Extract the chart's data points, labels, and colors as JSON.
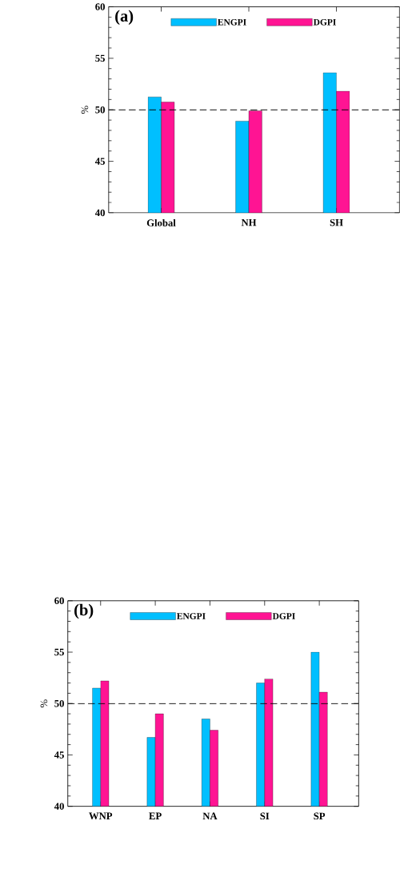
{
  "chart_data": [
    {
      "type": "bar",
      "title": "(a)",
      "ylabel": "%",
      "categories": [
        "Global",
        "NH",
        "SH"
      ],
      "series": [
        {
          "name": "ENGPI",
          "color": "#00bfff",
          "values": [
            51.25,
            48.9,
            53.6
          ]
        },
        {
          "name": "DGPI",
          "color": "#ff1493",
          "values": [
            50.75,
            49.9,
            51.8
          ]
        }
      ],
      "ylim": [
        40,
        60
      ],
      "yticks": [
        40,
        45,
        50,
        55,
        60
      ],
      "legend": "top",
      "ref_lines": [
        {
          "axis": "y",
          "value": 50,
          "line_style": "dashed"
        }
      ]
    },
    {
      "type": "bar",
      "title": "(b)",
      "ylabel": "%",
      "categories": [
        "WNP",
        "EP",
        "NA",
        "SI",
        "SP"
      ],
      "series": [
        {
          "name": "ENGPI",
          "color": "#00bfff",
          "values": [
            51.5,
            46.7,
            48.5,
            52.0,
            55.0
          ]
        },
        {
          "name": "DGPI",
          "color": "#ff1493",
          "values": [
            52.2,
            49.0,
            47.4,
            52.4,
            51.1
          ]
        }
      ],
      "ylim": [
        40,
        60
      ],
      "yticks": [
        40,
        45,
        50,
        55,
        60
      ],
      "legend": "top",
      "ref_lines": [
        {
          "axis": "y",
          "value": 50,
          "line_style": "dashed"
        }
      ]
    }
  ]
}
